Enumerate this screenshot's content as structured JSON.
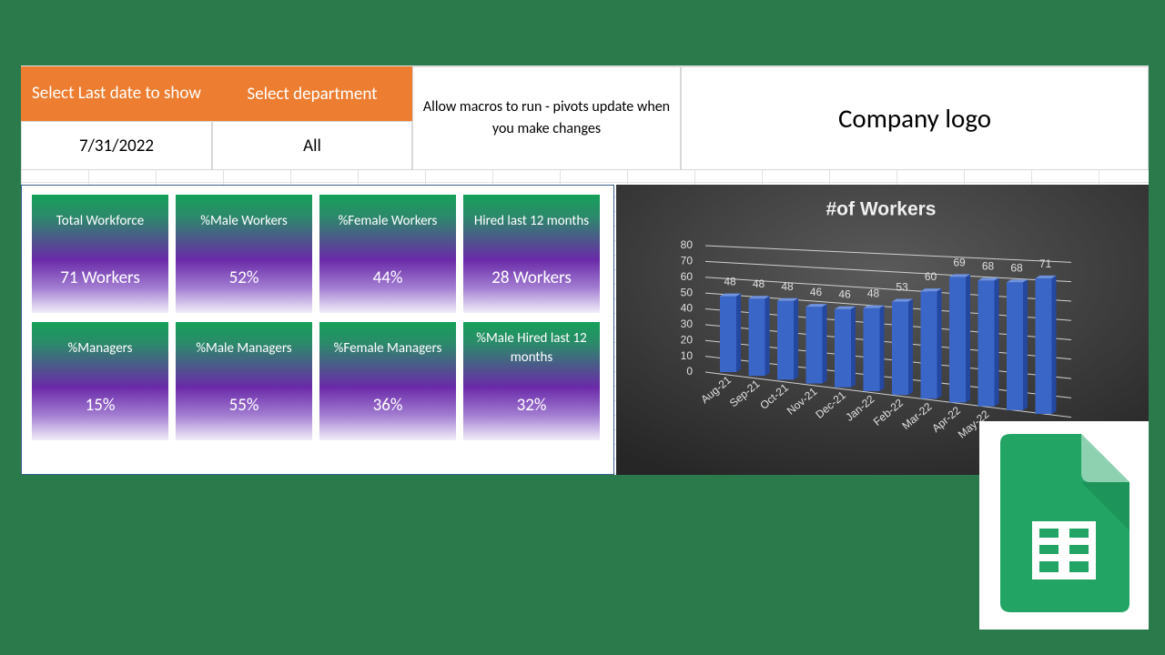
{
  "header": {
    "date_label": "Select Last date to show",
    "department_label": "Select department",
    "date_value": "7/31/2022",
    "department_value": "All",
    "macro_note": "Allow macros to run - pivots update when you make changes",
    "logo": "Company logo"
  },
  "kpis": [
    {
      "label": "Total Workforce",
      "value": "71 Workers"
    },
    {
      "label": "%Male Workers",
      "value": "52%"
    },
    {
      "label": "%Female Workers",
      "value": "44%"
    },
    {
      "label": "Hired last 12 months",
      "value": "28 Workers"
    },
    {
      "label": "%Managers",
      "value": "15%"
    },
    {
      "label": "%Male Managers",
      "value": "55%"
    },
    {
      "label": "%Female Managers",
      "value": "36%"
    },
    {
      "label": "%Male Hired last 12 months",
      "value": "32%"
    }
  ],
  "chart_data": {
    "type": "bar",
    "title": "#of Workers",
    "categories": [
      "Aug-21",
      "Sep-21",
      "Oct-21",
      "Nov-21",
      "Dec-21",
      "Jan-22",
      "Feb-22",
      "Mar-22",
      "Apr-22",
      "May-22",
      null,
      null
    ],
    "values": [
      48,
      48,
      48,
      46,
      46,
      48,
      53,
      60,
      69,
      68,
      68,
      71
    ],
    "color": "#3a66c8",
    "ylim": [
      0,
      80
    ],
    "yticks": [
      0,
      10,
      20,
      30,
      40,
      50,
      60,
      70,
      80
    ],
    "grid": true
  }
}
